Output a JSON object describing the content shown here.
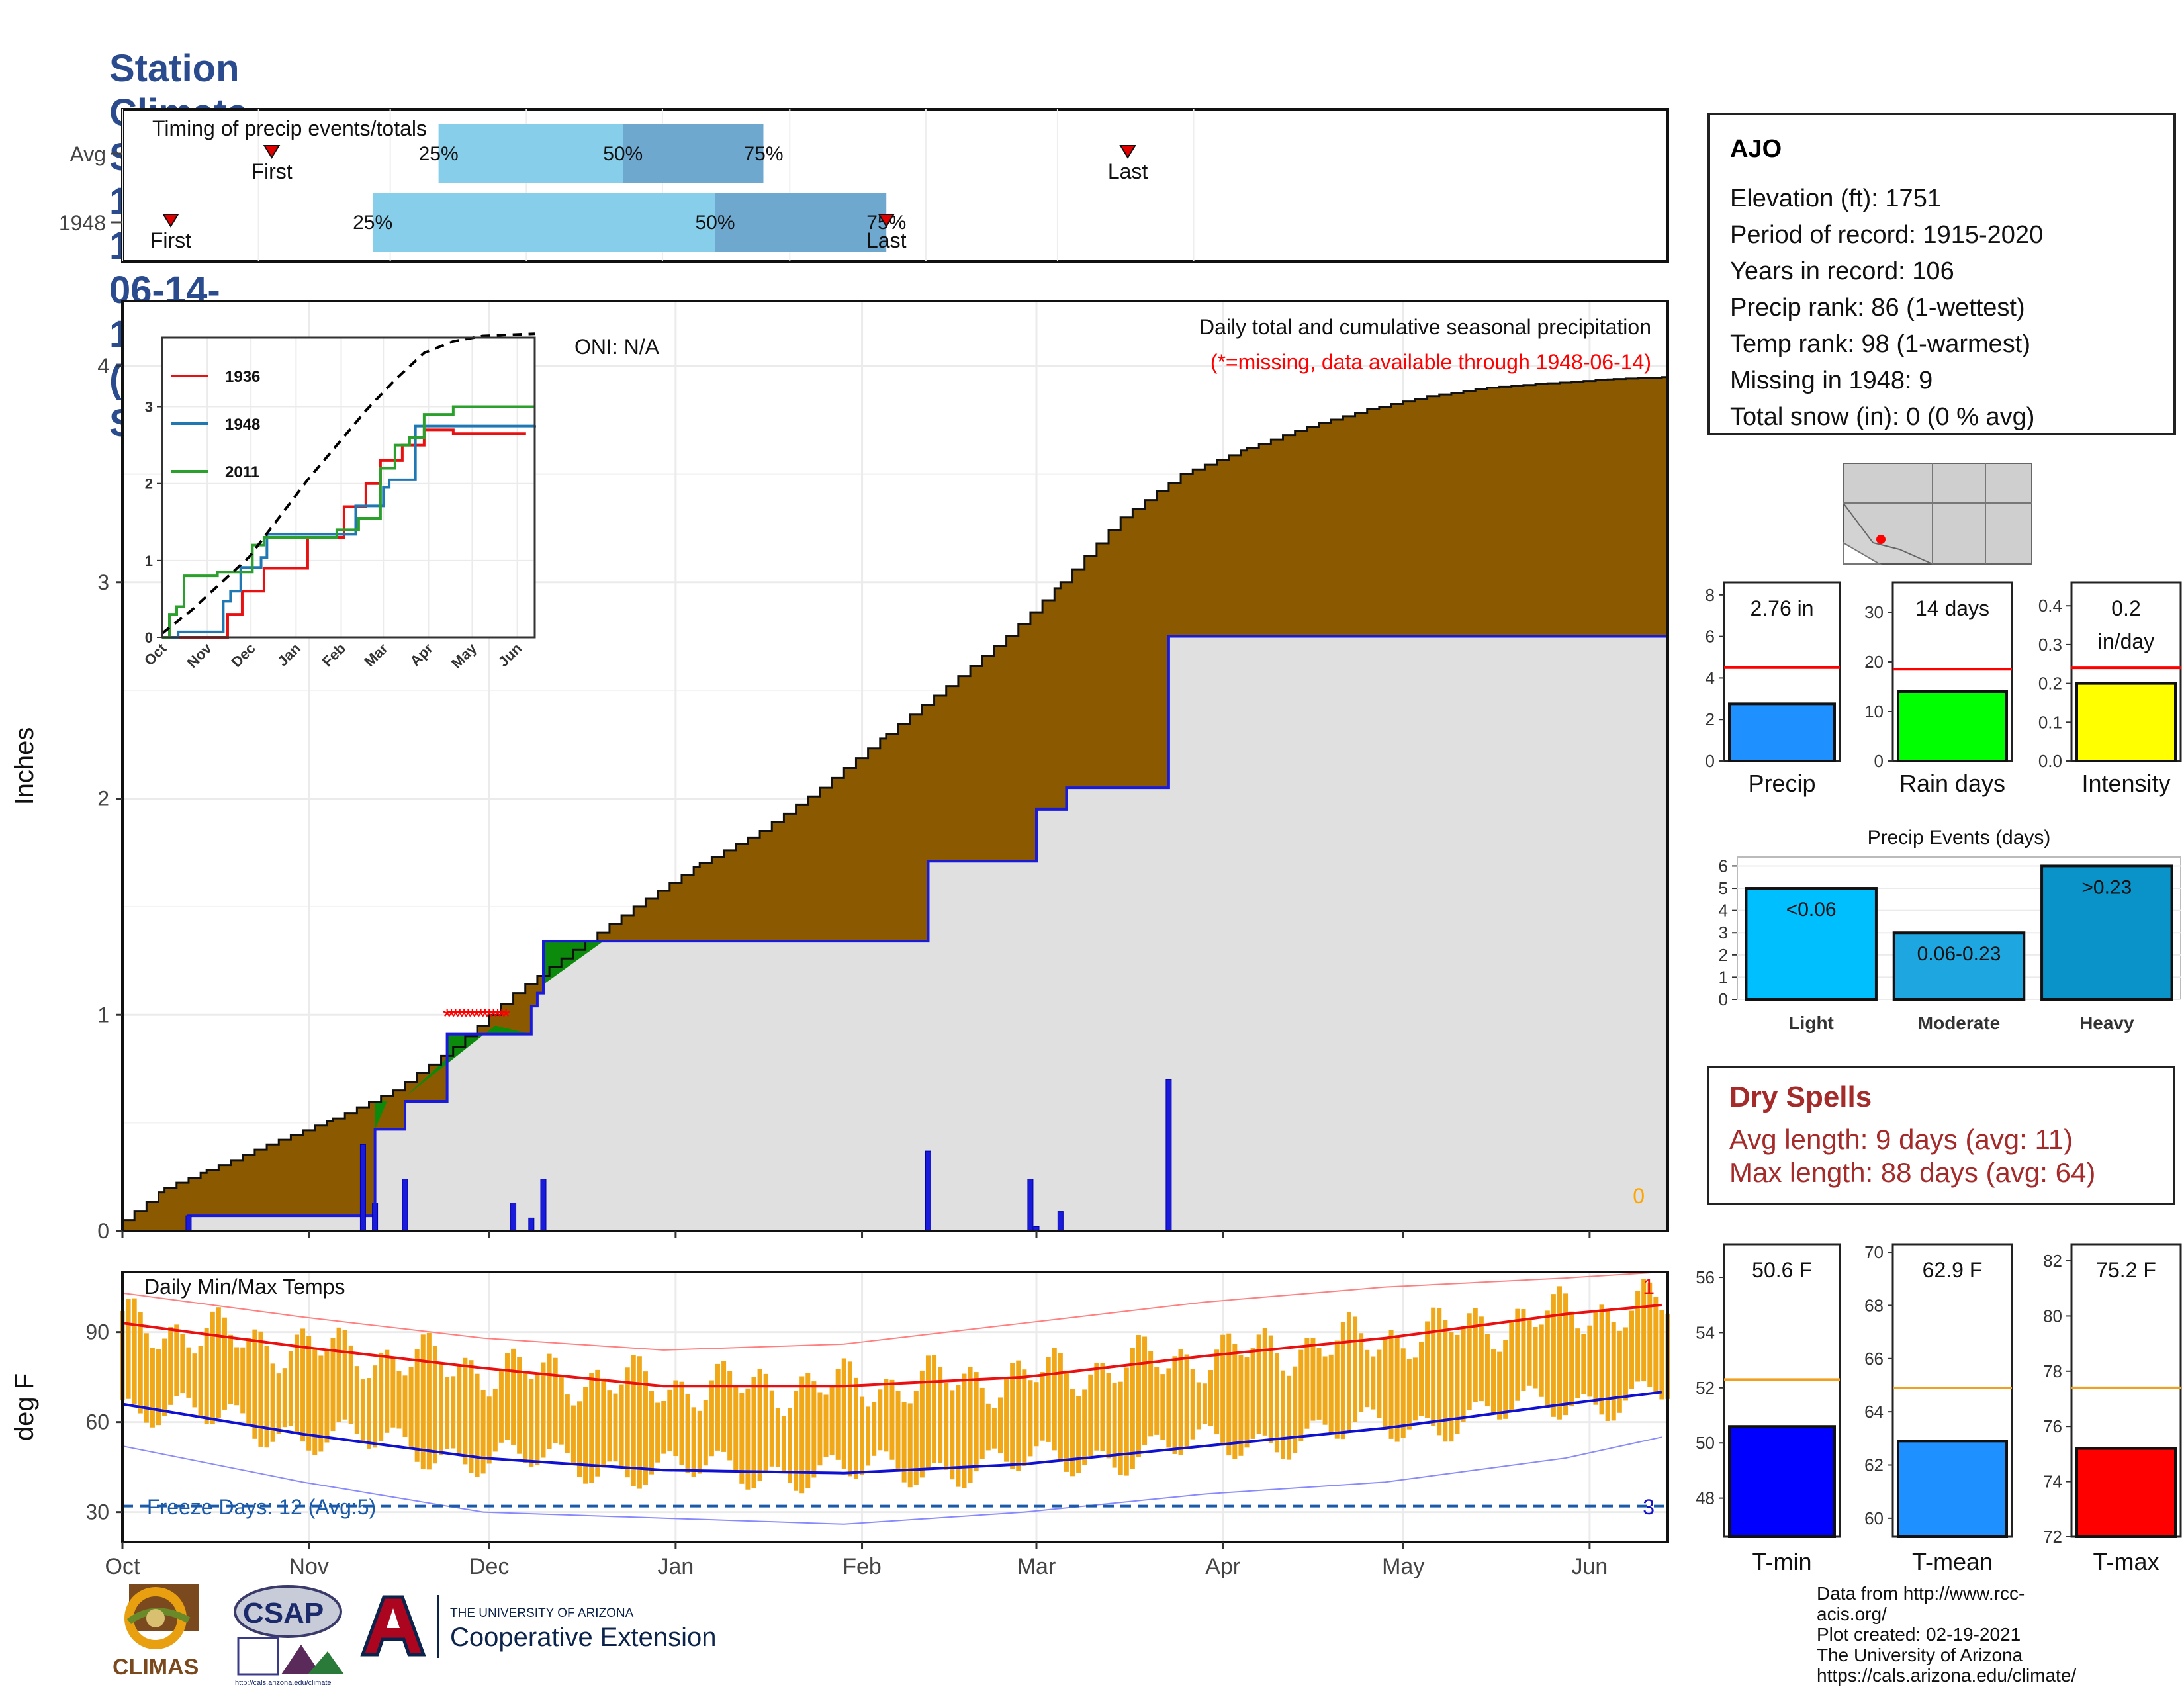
{
  "title": "Station Climate Summary: 10-01-1947 to 06-14-1948 (Cool Season)",
  "station": {
    "name": "AJO",
    "lines": [
      "Elevation (ft): 1751",
      "Period of record: 1915-2020",
      "Years in record: 106",
      "Precip rank: 86 (1-wettest)",
      "Temp rank: 98 (1-warmest)",
      "Missing in 1948: 9",
      "Total snow (in): 0 (0 % avg)"
    ]
  },
  "dry_spells": {
    "title": "Dry Spells",
    "avg_length": "Avg length: 9 days (avg: 11)",
    "max_length": "Max length: 88 days (avg: 64)"
  },
  "credits": [
    "Data from http://www.rcc-acis.org/",
    "Plot created: 02-19-2021",
    "The University of Arizona",
    "https://cals.arizona.edu/climate/"
  ],
  "logos": {
    "climas": "CLIMAS",
    "csap": "CSAP",
    "csap_url": "http://cals.arizona.edu/climate",
    "ua_small": "THE UNIVERSITY OF ARIZONA",
    "ua_big": "Cooperative Extension"
  },
  "colors": {
    "title": "#2a4b8d",
    "cum_avg_fill": "#8b5a00",
    "cum_excess_fill": "#0b8a0b",
    "cum_year_fill": "#e0e0e0",
    "year_line": "#1a1adb",
    "daily_bar": "#1a1adb",
    "missing": "#ff0000",
    "temp_bar": "#f0a818",
    "tmax_line": "#e81010",
    "tmin_line": "#1010d0",
    "q25_50": "#87ceeb",
    "q50_75": "#6fa8cf"
  },
  "chart_data": [
    {
      "type": "table",
      "name": "timing",
      "title": "Timing of precip events/totals",
      "rows": [
        {
          "label": "Avg",
          "first": "Nov 4",
          "q25": "Dec 12",
          "q50": "Jan 23",
          "q75": "Feb 24",
          "last": "May 17"
        },
        {
          "label": "1948",
          "first": "Oct 12",
          "q25": "Nov 27",
          "q50": "Feb 13",
          "q75": "Mar 23",
          "last": "Mar 23"
        }
      ],
      "labels": {
        "first": "First",
        "last": "Last",
        "q25": "25%",
        "q50": "50%",
        "q75": "75%"
      }
    },
    {
      "type": "area",
      "name": "cumulative_precip",
      "title": "Daily total and cumulative seasonal precipitation",
      "subtitle": "(*=missing, data available through 1948-06-14)",
      "oni": "ONI: N/A",
      "ylabel": "Inches",
      "ylim": [
        0,
        4.3
      ],
      "yticks": [
        0,
        1,
        2,
        3,
        4
      ],
      "xticks": [
        "Oct",
        "Nov",
        "Dec",
        "Jan",
        "Feb",
        "Mar",
        "Apr",
        "May",
        "Jun"
      ],
      "x_start": "1947-10-01",
      "x_end": "1948-06-14",
      "zero_label": "0",
      "avg_cumulative": {
        "x": [
          "1947-10-01",
          "1947-10-08",
          "1947-10-15",
          "1947-10-25",
          "1947-11-05",
          "1947-11-15",
          "1947-11-25",
          "1947-12-05",
          "1947-12-15",
          "1947-12-25",
          "1948-01-05",
          "1948-01-15",
          "1948-01-25",
          "1948-02-05",
          "1948-02-15",
          "1948-02-25",
          "1948-03-05",
          "1948-03-15",
          "1948-03-25",
          "1948-04-05",
          "1948-04-15",
          "1948-04-25",
          "1948-05-05",
          "1948-05-15",
          "1948-05-25",
          "1948-06-05",
          "1948-06-14"
        ],
        "y": [
          0.05,
          0.2,
          0.28,
          0.4,
          0.52,
          0.65,
          0.85,
          1.1,
          1.3,
          1.5,
          1.7,
          1.85,
          2.05,
          2.3,
          2.52,
          2.75,
          3.0,
          3.3,
          3.5,
          3.62,
          3.72,
          3.8,
          3.86,
          3.9,
          3.92,
          3.94,
          3.95
        ]
      },
      "year_cumulative": {
        "x": [
          "1947-10-01",
          "1947-10-12",
          "1947-11-10",
          "1947-11-12",
          "1947-11-17",
          "1947-11-24",
          "1947-11-30",
          "1947-12-05",
          "1947-12-08",
          "1947-12-09",
          "1947-12-10",
          "1948-02-11",
          "1948-02-12",
          "1948-02-29",
          "1948-03-01",
          "1948-03-05",
          "1948-03-06",
          "1948-03-23",
          "1948-06-14"
        ],
        "y": [
          0.0,
          0.07,
          0.07,
          0.47,
          0.6,
          0.91,
          0.91,
          0.91,
          1.04,
          1.1,
          1.34,
          1.34,
          1.71,
          1.71,
          1.95,
          1.95,
          2.05,
          2.75,
          2.76
        ]
      },
      "daily_bars": {
        "x": [
          "1947-10-12",
          "1947-11-10",
          "1947-11-12",
          "1947-11-17",
          "1947-12-05",
          "1947-12-08",
          "1947-12-10",
          "1948-02-12",
          "1948-02-29",
          "1948-03-01",
          "1948-03-05",
          "1948-03-23"
        ],
        "y": [
          0.07,
          0.4,
          0.13,
          0.24,
          0.13,
          0.06,
          0.24,
          0.37,
          0.24,
          0.02,
          0.09,
          0.7
        ]
      },
      "missing": {
        "from": "1947-11-24",
        "to": "1947-12-04",
        "y": 1.0
      }
    },
    {
      "type": "line",
      "name": "inset_cumulative",
      "xticks": [
        "Oct",
        "Nov",
        "Dec",
        "Jan",
        "Feb",
        "Mar",
        "Apr",
        "May",
        "Jun"
      ],
      "yticks": [
        0,
        1,
        2,
        3
      ],
      "ylim": [
        0,
        3.9
      ],
      "series": [
        {
          "name": "1936",
          "color": "#e81010",
          "x": [
            0,
            35,
            45,
            55,
            60,
            70,
            85,
            100,
            115,
            125,
            140,
            150,
            165,
            175,
            180,
            200,
            250
          ],
          "y": [
            0,
            0,
            0.3,
            0.6,
            0.6,
            0.9,
            0.9,
            1.3,
            1.3,
            1.7,
            2.0,
            2.3,
            2.5,
            2.5,
            2.7,
            2.65,
            2.65
          ]
        },
        {
          "name": "1948",
          "color": "#1f78b4",
          "x": [
            0,
            11,
            40,
            42,
            47,
            54,
            60,
            68,
            72,
            130,
            133,
            150,
            152,
            155,
            156,
            174,
            256
          ],
          "y": [
            0,
            0.07,
            0.07,
            0.47,
            0.6,
            0.91,
            0.91,
            1.04,
            1.34,
            1.34,
            1.71,
            1.71,
            1.95,
            1.95,
            2.05,
            2.75,
            2.76
          ]
        },
        {
          "name": "2011",
          "color": "#2ca02c",
          "x": [
            0,
            5,
            10,
            15,
            35,
            38,
            55,
            62,
            70,
            80,
            120,
            135,
            150,
            160,
            170,
            180,
            200,
            256
          ],
          "y": [
            0,
            0.3,
            0.4,
            0.8,
            0.8,
            0.85,
            0.85,
            1.2,
            1.3,
            1.3,
            1.4,
            1.55,
            2.2,
            2.5,
            2.6,
            2.9,
            3.0,
            3.0
          ]
        },
        {
          "name": "avg",
          "color": "#000000",
          "x": [
            0,
            20,
            40,
            60,
            80,
            100,
            120,
            140,
            160,
            180,
            200,
            220,
            256
          ],
          "y": [
            0.05,
            0.35,
            0.7,
            1.05,
            1.55,
            2.05,
            2.5,
            2.95,
            3.35,
            3.7,
            3.85,
            3.92,
            3.95
          ]
        }
      ]
    },
    {
      "type": "line",
      "name": "daily_temps",
      "title": "Daily Min/Max Temps",
      "ylabel": "deg F",
      "ylim": [
        20,
        110
      ],
      "yticks": [
        30,
        60,
        90
      ],
      "xticks": [
        "Oct",
        "Nov",
        "Dec",
        "Jan",
        "Feb",
        "Mar",
        "Apr",
        "May",
        "Jun"
      ],
      "freeze_label": "Freeze Days: 12 (Avg:5)",
      "freeze_line": 32,
      "count_top": "1",
      "count_bottom": "3",
      "normal_max": {
        "x": [
          0,
          30,
          60,
          90,
          120,
          150,
          180,
          210,
          240,
          256
        ],
        "y": [
          93,
          85,
          78,
          72,
          72,
          75,
          82,
          88,
          96,
          99
        ]
      },
      "normal_min": {
        "x": [
          0,
          30,
          60,
          90,
          120,
          150,
          180,
          210,
          240,
          256
        ],
        "y": [
          66,
          56,
          48,
          44,
          43,
          46,
          52,
          58,
          66,
          70
        ]
      },
      "record_max": {
        "x": [
          0,
          30,
          60,
          90,
          120,
          150,
          180,
          210,
          240,
          256
        ],
        "y": [
          103,
          95,
          88,
          84,
          86,
          93,
          100,
          105,
          108,
          110
        ]
      },
      "record_min": {
        "x": [
          0,
          30,
          60,
          90,
          120,
          150,
          180,
          210,
          240,
          256
        ],
        "y": [
          52,
          40,
          30,
          28,
          26,
          30,
          36,
          40,
          48,
          55
        ]
      }
    },
    {
      "type": "bar",
      "name": "season_precip",
      "categories": [
        "Precip"
      ],
      "values": [
        2.76
      ],
      "value_label": "2.76 in",
      "normal": 4.5,
      "ylim": [
        0,
        8.6
      ],
      "yticks": [
        0,
        2,
        4,
        6,
        8
      ],
      "color": "#1e90ff"
    },
    {
      "type": "bar",
      "name": "season_raindays",
      "categories": [
        "Rain days"
      ],
      "values": [
        14
      ],
      "value_label": "14 days",
      "normal": 18.5,
      "ylim": [
        0,
        36
      ],
      "yticks": [
        0,
        10,
        20,
        30
      ],
      "color": "#00ff00"
    },
    {
      "type": "bar",
      "name": "season_intensity",
      "categories": [
        "Intensity"
      ],
      "values": [
        0.2
      ],
      "value_label": "0.2",
      "value_label2": "in/day",
      "normal": 0.24,
      "ylim": [
        0,
        0.46
      ],
      "yticks": [
        "0.0",
        "0.1",
        "0.2",
        "0.3",
        "0.4"
      ],
      "color": "#ffff00"
    },
    {
      "type": "bar",
      "name": "precip_events",
      "title": "Precip Events (days)",
      "categories": [
        "Light",
        "Moderate",
        "Heavy"
      ],
      "values": [
        5,
        3,
        6
      ],
      "bar_labels": [
        "<0.06",
        "0.06-0.23",
        ">0.23"
      ],
      "ylim": [
        0,
        6.4
      ],
      "yticks": [
        0,
        1,
        2,
        3,
        4,
        5,
        6
      ],
      "colors": [
        "#00bfff",
        "#1ea6e0",
        "#0a93c8"
      ]
    },
    {
      "type": "bar",
      "name": "season_tmin",
      "categories": [
        "T-min"
      ],
      "values": [
        50.6
      ],
      "value_label": "50.6 F",
      "normal": 52.3,
      "ylim": [
        46.6,
        57.2
      ],
      "yticks": [
        48,
        50,
        52,
        54,
        56
      ],
      "color": "#0000ff"
    },
    {
      "type": "bar",
      "name": "season_tmean",
      "categories": [
        "T-mean"
      ],
      "values": [
        62.9
      ],
      "value_label": "62.9 F",
      "normal": 64.9,
      "ylim": [
        59.3,
        70.3
      ],
      "yticks": [
        60,
        62,
        64,
        66,
        68,
        70
      ],
      "color": "#1e90ff"
    },
    {
      "type": "bar",
      "name": "season_tmax",
      "categories": [
        "T-max"
      ],
      "values": [
        75.2
      ],
      "value_label": "75.2 F",
      "normal": 77.4,
      "ylim": [
        72,
        82.6
      ],
      "yticks": [
        72,
        74,
        76,
        78,
        80,
        82
      ],
      "color": "#ff0000"
    }
  ]
}
